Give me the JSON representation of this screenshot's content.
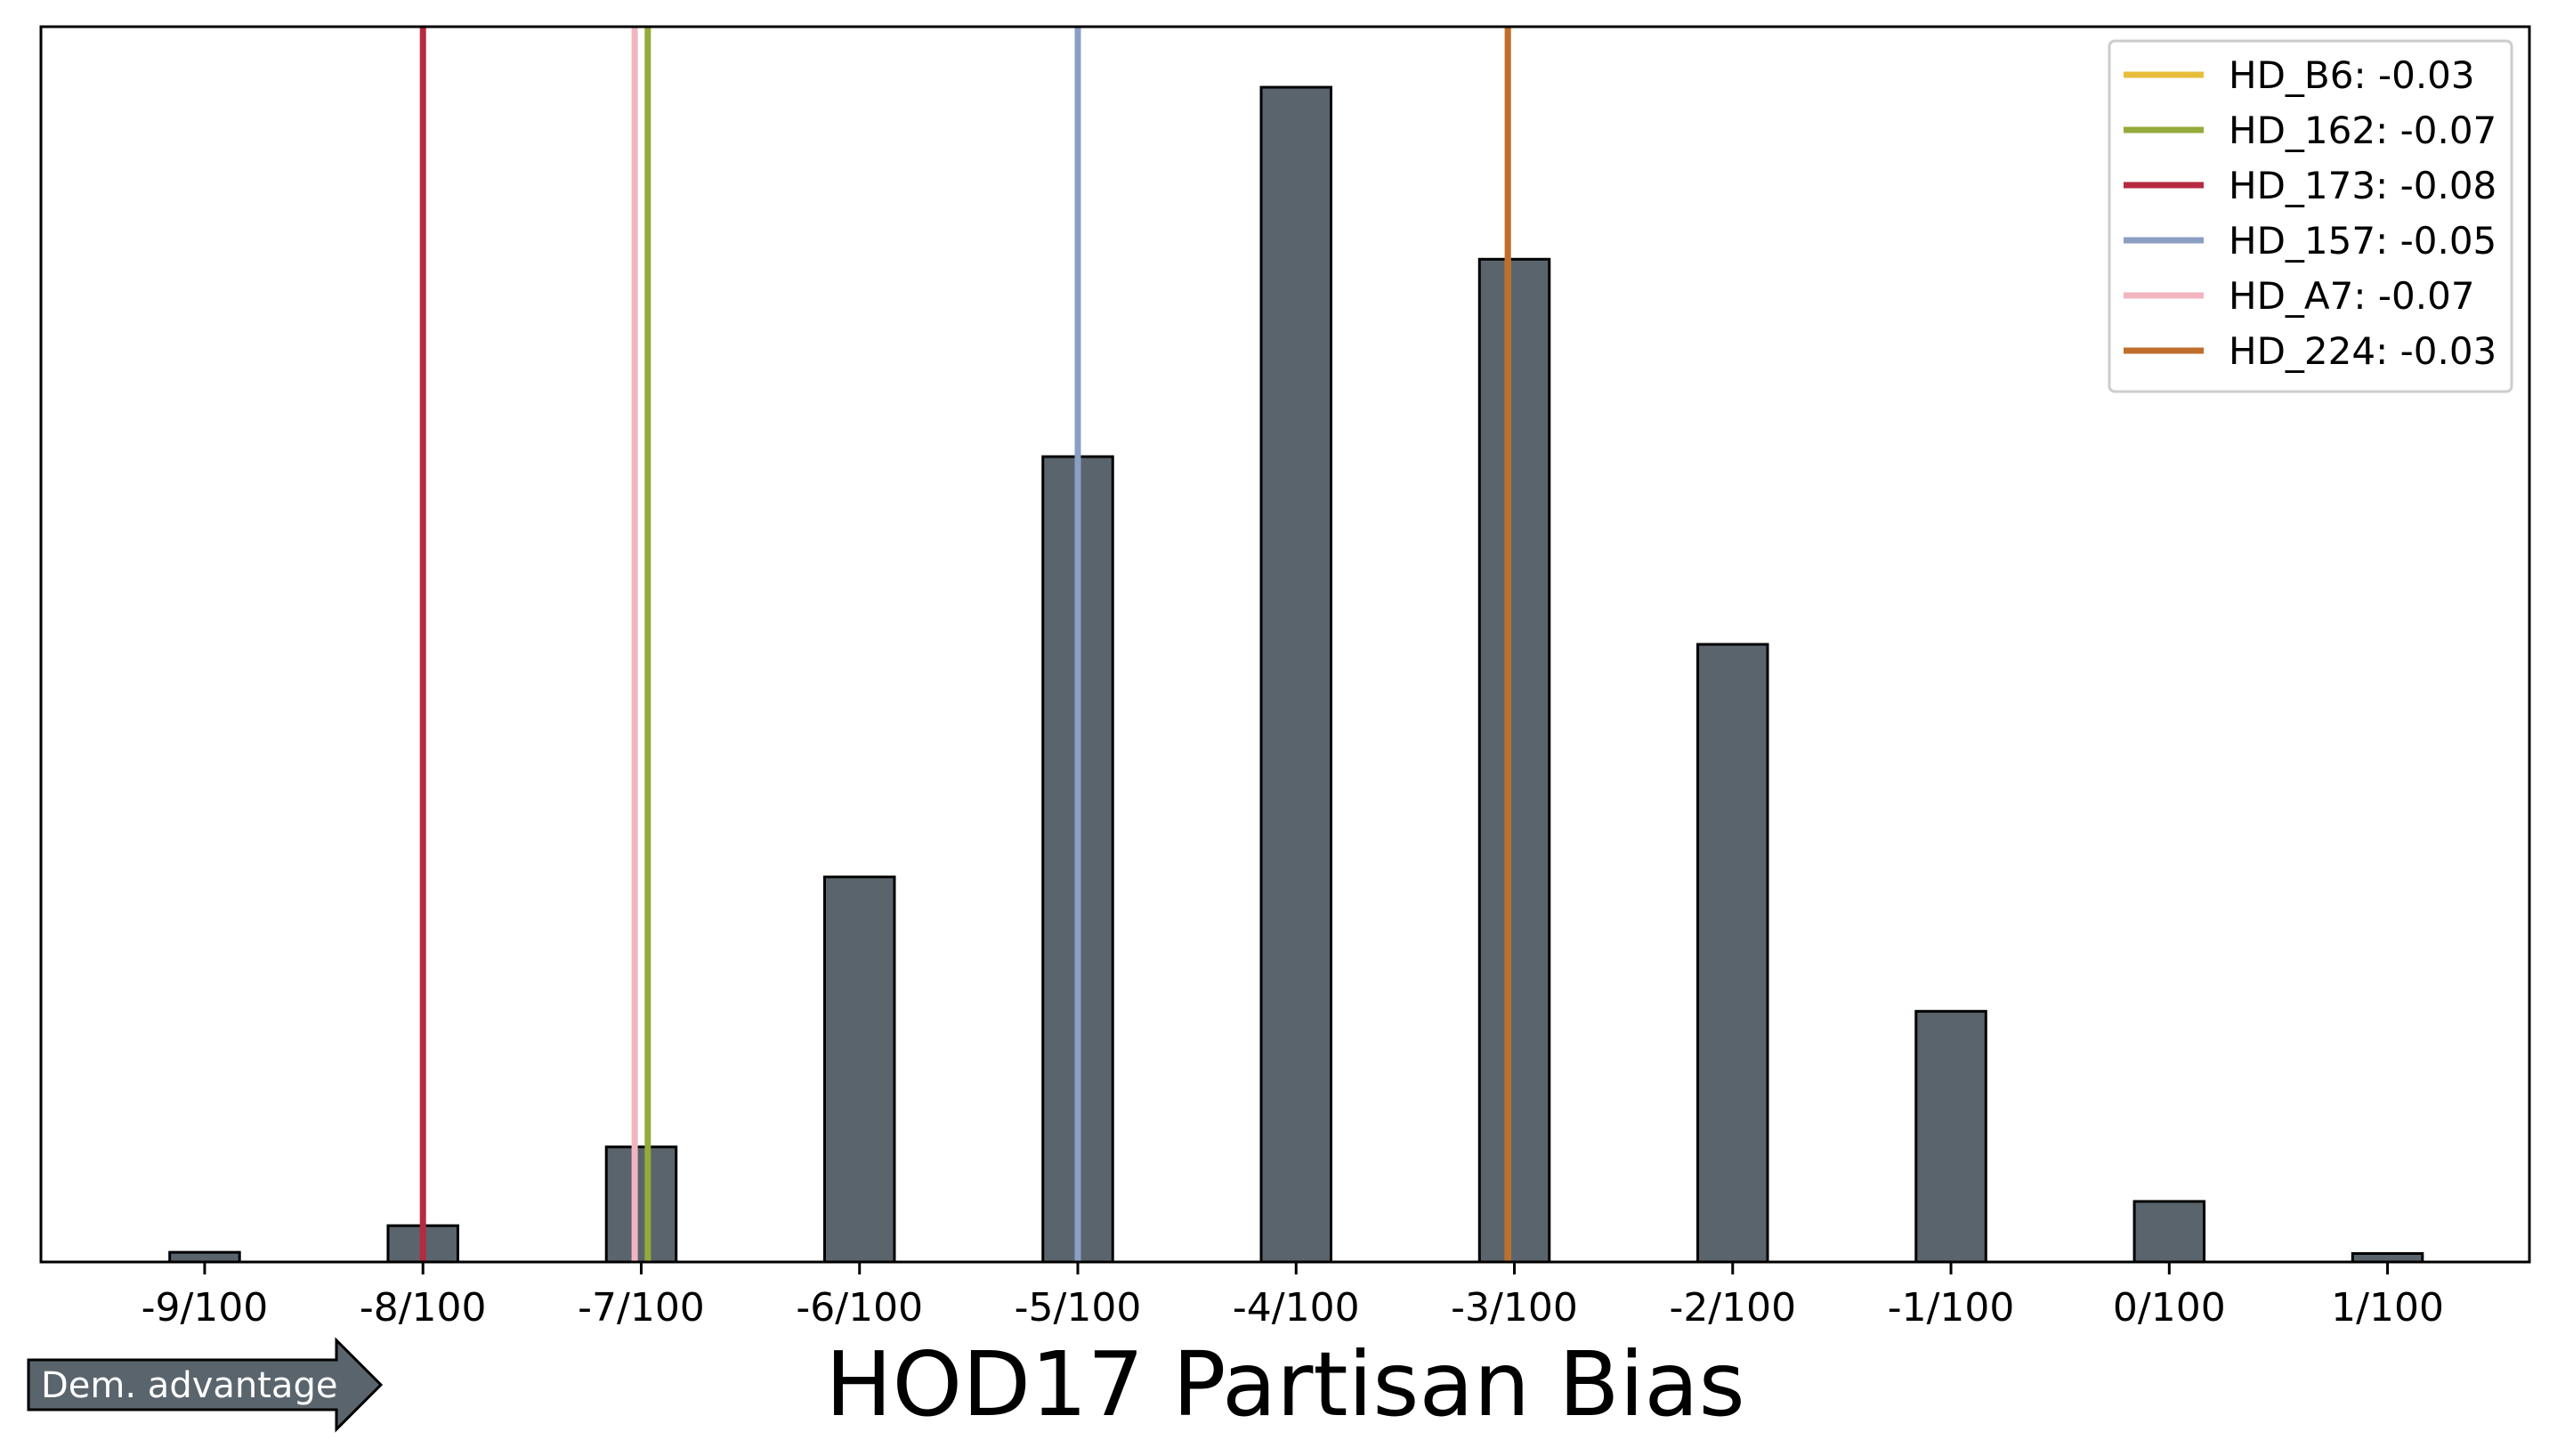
{
  "chart_data": {
    "type": "bar",
    "xlabel": "HOD17 Partisan Bias",
    "ylabel": "",
    "title": "",
    "y_ticks_shown": false,
    "grid": false,
    "legend_position": "top-right",
    "xlim": [
      -0.0975,
      0.0165
    ],
    "x_ticks": [
      -0.09,
      -0.08,
      -0.07,
      -0.06,
      -0.05,
      -0.04,
      -0.03,
      -0.02,
      -0.01,
      0.0,
      0.01
    ],
    "x_tick_labels": [
      "-9/100",
      "-8/100",
      "-7/100",
      "-6/100",
      "-5/100",
      "-4/100",
      "-3/100",
      "-2/100",
      "-1/100",
      "0/100",
      "1/100"
    ],
    "bins": {
      "centers": [
        -0.09,
        -0.085,
        -0.08,
        -0.075,
        -0.07,
        -0.065,
        -0.06,
        -0.055,
        -0.05,
        -0.045,
        -0.04,
        -0.035,
        -0.03,
        -0.025,
        -0.02,
        -0.015,
        -0.01,
        -0.005,
        0.0,
        0.005,
        0.01
      ],
      "width": 0.0032,
      "values": [
        0.8,
        0,
        3,
        0,
        9.5,
        0,
        31.8,
        0,
        66.5,
        0,
        97.0,
        0,
        82.8,
        0,
        51.0,
        0,
        20.7,
        0,
        5.0,
        0,
        0.7
      ]
    },
    "ylim": [
      0,
      102
    ],
    "bar_fill": "#5a646c",
    "bar_edge": "#000000",
    "reference_lines": [
      {
        "name": "HD_B6: -0.03",
        "x": -0.0303,
        "color": "#e8bd3a"
      },
      {
        "name": "HD_162: -0.07",
        "x": -0.0697,
        "color": "#94aa3b"
      },
      {
        "name": "HD_173: -0.08",
        "x": -0.08,
        "color": "#b52a40"
      },
      {
        "name": "HD_157: -0.05",
        "x": -0.05,
        "color": "#8a9fc3"
      },
      {
        "name": "HD_A7: -0.07",
        "x": -0.0703,
        "color": "#f2b5c0"
      },
      {
        "name": "HD_224: -0.03",
        "x": -0.0303,
        "color": "#c06e2c"
      }
    ],
    "annotation": "Dem. advantage"
  }
}
